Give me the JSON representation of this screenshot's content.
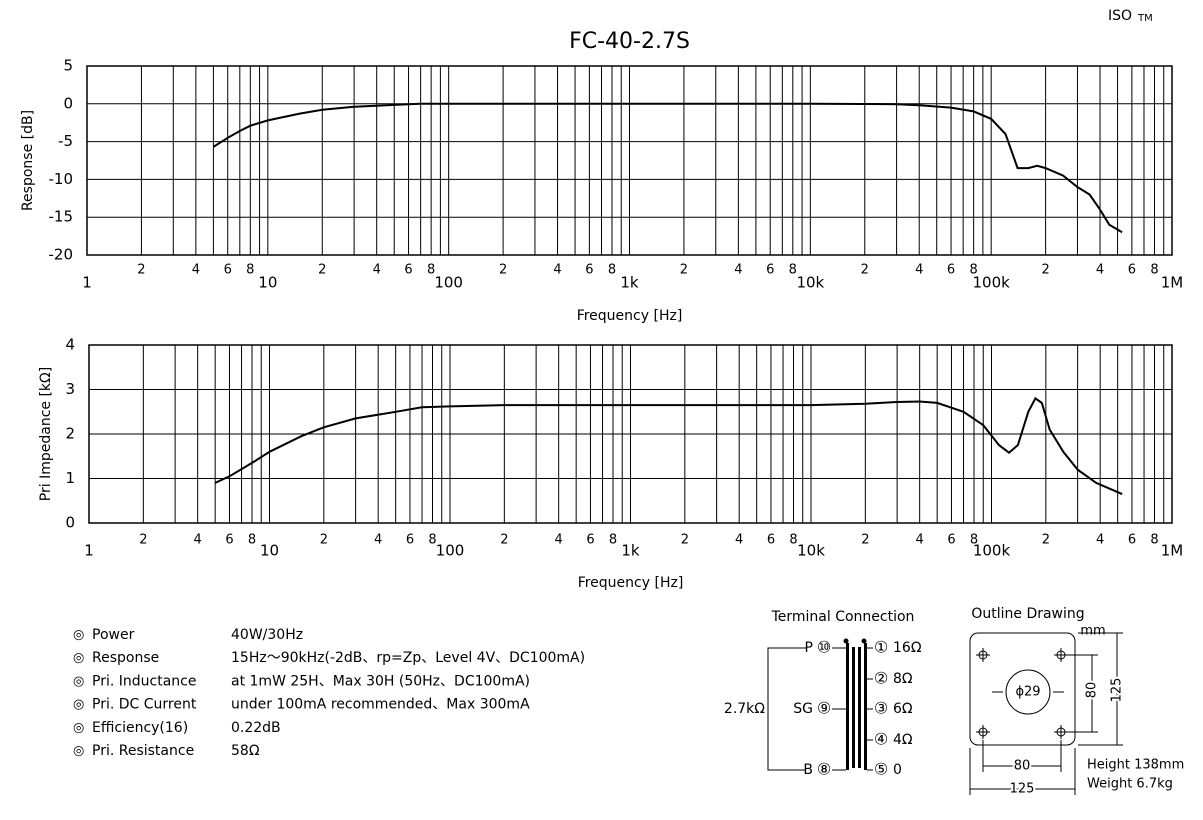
{
  "header": {
    "brand": "ISO",
    "mark": "TM"
  },
  "chart_data": [
    {
      "type": "line",
      "title": "FC-40-2.7S",
      "xlabel": "Frequency [Hz]",
      "ylabel": "Response [dB]",
      "xscale": "log",
      "grid": true,
      "color": "#000000",
      "xlim": [
        1,
        1000000
      ],
      "ylim": [
        -20,
        5
      ],
      "yticks": [
        5,
        0,
        -5,
        -10,
        -15,
        -20
      ],
      "xticks": [
        1,
        2,
        4,
        6,
        8,
        10,
        {
          "value": 20,
          "label": "2"
        },
        {
          "value": 40,
          "label": "4"
        },
        {
          "value": 60,
          "label": "6"
        },
        {
          "value": 80,
          "label": "8"
        },
        100,
        {
          "value": 200,
          "label": "2"
        },
        {
          "value": 400,
          "label": "4"
        },
        {
          "value": 600,
          "label": "6"
        },
        {
          "value": 800,
          "label": "8"
        },
        {
          "value": 1000,
          "label": "1k"
        },
        {
          "value": 2000,
          "label": "2"
        },
        {
          "value": 4000,
          "label": "4"
        },
        {
          "value": 6000,
          "label": "6"
        },
        {
          "value": 8000,
          "label": "8"
        },
        {
          "value": 10000,
          "label": "10k"
        },
        {
          "value": 20000,
          "label": "2"
        },
        {
          "value": 40000,
          "label": "4"
        },
        {
          "value": 60000,
          "label": "6"
        },
        {
          "value": 80000,
          "label": "8"
        },
        {
          "value": 100000,
          "label": "100k"
        },
        {
          "value": 200000,
          "label": "2"
        },
        {
          "value": 400000,
          "label": "4"
        },
        {
          "value": 600000,
          "label": "6"
        },
        {
          "value": 800000,
          "label": "8"
        },
        {
          "value": 1000000,
          "label": "1M"
        }
      ],
      "xgrid": [
        1,
        2,
        3,
        4,
        5,
        6,
        7,
        8,
        9,
        10,
        20,
        30,
        40,
        50,
        60,
        70,
        80,
        90,
        100,
        200,
        300,
        400,
        500,
        600,
        700,
        800,
        900,
        1000,
        2000,
        3000,
        4000,
        5000,
        6000,
        7000,
        8000,
        9000,
        10000,
        20000,
        30000,
        40000,
        50000,
        60000,
        70000,
        80000,
        90000,
        100000,
        200000,
        300000,
        400000,
        500000,
        600000,
        700000,
        800000,
        900000,
        1000000
      ],
      "x": [
        5,
        6,
        7,
        8,
        10,
        15,
        20,
        30,
        50,
        70,
        100,
        1000,
        10000,
        30000,
        40000,
        60000,
        80000,
        100000,
        120000,
        140000,
        160000,
        180000,
        200000,
        250000,
        300000,
        350000,
        400000,
        450000,
        530000
      ],
      "values": [
        -5.7,
        -4.5,
        -3.6,
        -2.9,
        -2.2,
        -1.3,
        -0.8,
        -0.4,
        -0.15,
        0,
        0,
        0,
        0,
        -0.05,
        -0.2,
        -0.5,
        -1.0,
        -2,
        -4,
        -8.5,
        -8.5,
        -8.2,
        -8.5,
        -9.5,
        -11,
        -12,
        -14,
        -16,
        -17
      ]
    },
    {
      "type": "line",
      "xlabel": "Frequency [Hz]",
      "ylabel": "Pri Impedance [kΩ]",
      "xscale": "log",
      "grid": true,
      "color": "#000000",
      "xlim": [
        1,
        1000000
      ],
      "ylim": [
        0,
        4
      ],
      "yticks": [
        4,
        3,
        2,
        1,
        0
      ],
      "xticks": [
        1,
        2,
        4,
        6,
        8,
        10,
        {
          "value": 20,
          "label": "2"
        },
        {
          "value": 40,
          "label": "4"
        },
        {
          "value": 60,
          "label": "6"
        },
        {
          "value": 80,
          "label": "8"
        },
        100,
        {
          "value": 200,
          "label": "2"
        },
        {
          "value": 400,
          "label": "4"
        },
        {
          "value": 600,
          "label": "6"
        },
        {
          "value": 800,
          "label": "8"
        },
        {
          "value": 1000,
          "label": "1k"
        },
        {
          "value": 2000,
          "label": "2"
        },
        {
          "value": 4000,
          "label": "4"
        },
        {
          "value": 6000,
          "label": "6"
        },
        {
          "value": 8000,
          "label": "8"
        },
        {
          "value": 10000,
          "label": "10k"
        },
        {
          "value": 20000,
          "label": "2"
        },
        {
          "value": 40000,
          "label": "4"
        },
        {
          "value": 60000,
          "label": "6"
        },
        {
          "value": 80000,
          "label": "8"
        },
        {
          "value": 100000,
          "label": "100k"
        },
        {
          "value": 200000,
          "label": "2"
        },
        {
          "value": 400000,
          "label": "4"
        },
        {
          "value": 600000,
          "label": "6"
        },
        {
          "value": 800000,
          "label": "8"
        },
        {
          "value": 1000000,
          "label": "1M"
        }
      ],
      "xgrid": [
        1,
        2,
        3,
        4,
        5,
        6,
        7,
        8,
        9,
        10,
        20,
        30,
        40,
        50,
        60,
        70,
        80,
        90,
        100,
        200,
        300,
        400,
        500,
        600,
        700,
        800,
        900,
        1000,
        2000,
        3000,
        4000,
        5000,
        6000,
        7000,
        8000,
        9000,
        10000,
        20000,
        30000,
        40000,
        50000,
        60000,
        70000,
        80000,
        90000,
        100000,
        200000,
        300000,
        400000,
        500000,
        600000,
        700000,
        800000,
        900000,
        1000000
      ],
      "x": [
        5,
        6,
        8,
        10,
        15,
        20,
        30,
        50,
        70,
        100,
        200,
        1000,
        10000,
        20000,
        30000,
        40000,
        50000,
        70000,
        90000,
        110000,
        125000,
        140000,
        160000,
        175000,
        190000,
        210000,
        250000,
        300000,
        380000,
        530000
      ],
      "values": [
        0.9,
        1.05,
        1.35,
        1.6,
        1.95,
        2.15,
        2.35,
        2.5,
        2.6,
        2.62,
        2.65,
        2.65,
        2.65,
        2.68,
        2.72,
        2.73,
        2.7,
        2.5,
        2.2,
        1.75,
        1.58,
        1.75,
        2.5,
        2.8,
        2.7,
        2.1,
        1.6,
        1.2,
        0.9,
        0.65
      ]
    }
  ],
  "specs": [
    {
      "label": "Power",
      "value": "40W/30Hz"
    },
    {
      "label": "Response",
      "value": "15Hz～90kHz(-2dB、rp=Zp、Level 4V、DC100mA)"
    },
    {
      "label": "Pri. Inductance",
      "value": "at 1mW 25H、Max 30H (50Hz、DC100mA)"
    },
    {
      "label": "Pri. DC Current",
      "value": "under 100mA recommended、Max 300mA"
    },
    {
      "label": "Efficiency(16)",
      "value": "0.22dB"
    },
    {
      "label": "Pri. Resistance",
      "value": "58Ω"
    }
  ],
  "terminal": {
    "title": "Terminal Connection",
    "impedance": "2.7kΩ",
    "primary": [
      {
        "name": "P",
        "pin": "⑩"
      },
      {
        "name": "SG",
        "pin": "⑨"
      },
      {
        "name": "B",
        "pin": "⑧"
      }
    ],
    "secondary": [
      {
        "pin": "①",
        "value": "16Ω"
      },
      {
        "pin": "②",
        "value": "8Ω"
      },
      {
        "pin": "③",
        "value": "6Ω"
      },
      {
        "pin": "④",
        "value": "4Ω"
      },
      {
        "pin": "⑤",
        "value": "0"
      }
    ]
  },
  "outline": {
    "title": "Outline Drawing",
    "unit": "mm",
    "hole": "ϕ29",
    "inner_height": "80",
    "outer_height": "125",
    "inner_width": "80",
    "outer_width": "125",
    "height": "Height 138mm",
    "weight": "Weight 6.7kg"
  }
}
